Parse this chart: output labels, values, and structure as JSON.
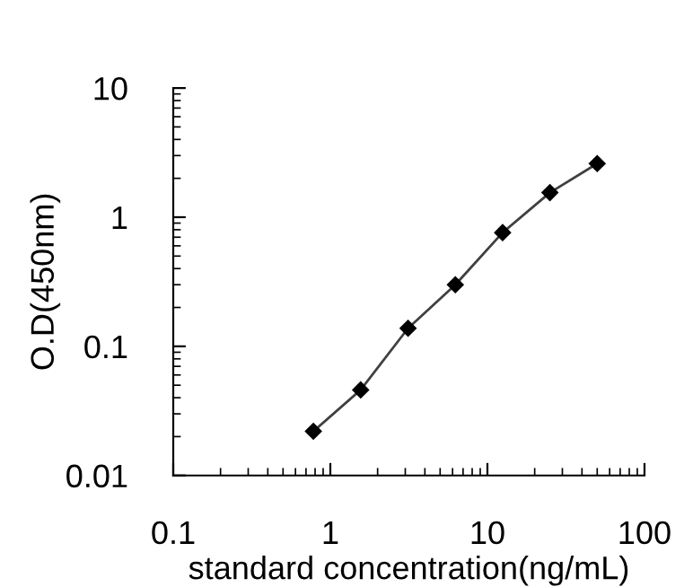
{
  "chart_data": {
    "type": "line",
    "xlabel": "standard concentration(ng/mL)",
    "ylabel": "O.D(450nm)",
    "log": "xy",
    "x": [
      0.78,
      1.56,
      3.125,
      6.25,
      12.5,
      25,
      50
    ],
    "series": [
      {
        "color": "#404040",
        "values": [
          0.022,
          0.046,
          0.138,
          0.3,
          0.76,
          1.55,
          2.6
        ]
      }
    ],
    "xlim": [
      0.1,
      100
    ],
    "xticks": [
      0.1,
      1,
      10,
      100
    ],
    "ylim": [
      0.01,
      10
    ],
    "yticks": [
      0.01,
      0.1,
      1,
      10
    ],
    "marker": "diamond",
    "line_style": "solid",
    "grid": false,
    "legend": false
  }
}
